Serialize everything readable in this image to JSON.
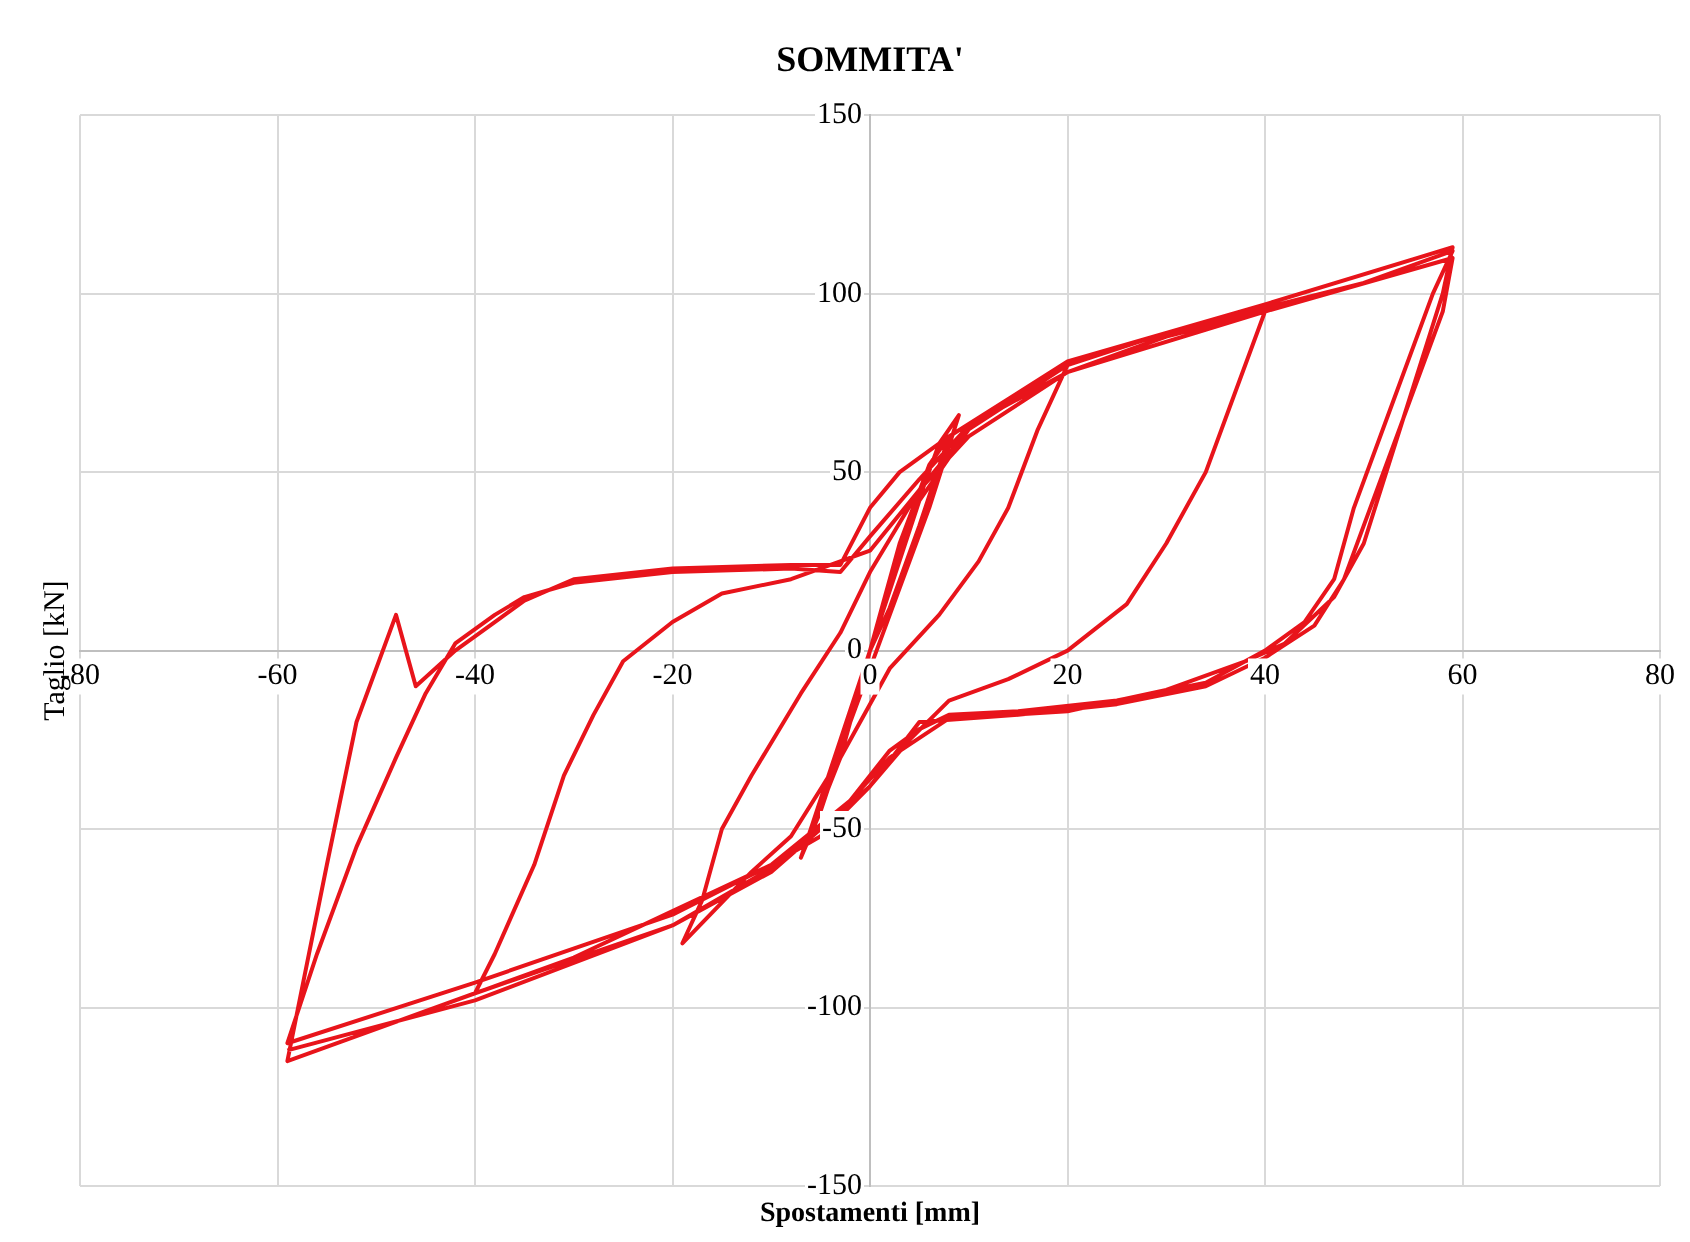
{
  "chart_data": {
    "type": "line",
    "title": "SOMMITA'",
    "xlabel": "Spostamenti [mm]",
    "ylabel": "Taglio [kN]",
    "xlim": [
      -80,
      80
    ],
    "xticks": [
      -80,
      -60,
      -40,
      -20,
      0,
      20,
      40,
      60,
      80
    ],
    "ylim": [
      -150,
      150
    ],
    "yticks": [
      -150,
      -100,
      -50,
      0,
      50,
      100,
      150
    ],
    "grid": true,
    "legend": false,
    "marker": "none",
    "line_style": "solid",
    "series": [
      {
        "color": "#e8141b",
        "x": [
          0,
          3,
          6,
          8,
          5,
          2,
          0,
          -3,
          -6,
          -7,
          -4,
          -1,
          0,
          4,
          7,
          9,
          6,
          2,
          -2,
          -5,
          -7,
          -3,
          0,
          5,
          10,
          15,
          20,
          17,
          14,
          11,
          7,
          2,
          -3,
          -8,
          -12,
          -19,
          -17,
          -15,
          -12,
          -7,
          -3,
          0,
          5,
          10,
          20,
          30,
          40,
          38,
          34,
          30,
          26,
          20,
          14,
          8,
          4,
          0,
          -5,
          -10,
          -20,
          -30,
          -40,
          -38,
          -34,
          -31,
          -28,
          -25,
          -20,
          -15,
          -8,
          0,
          5,
          10,
          20,
          30,
          40,
          50,
          59,
          57,
          53,
          49,
          47,
          44,
          40,
          34,
          25,
          15,
          8,
          5,
          2,
          -2,
          -10,
          -20,
          -40,
          -59,
          -56,
          -52,
          -48,
          -45,
          -42,
          -38,
          -35,
          -30,
          -20,
          -8,
          -3,
          0,
          5,
          10,
          20,
          40,
          59,
          58,
          54,
          50,
          48,
          45,
          40,
          34,
          25,
          15,
          5,
          0,
          -5,
          -10,
          -20,
          -40,
          -59,
          -55,
          -52,
          -48,
          -46,
          -42,
          -38,
          -35,
          -30,
          -20,
          -8,
          -3,
          0,
          3,
          8,
          20,
          40,
          59,
          58,
          54,
          50,
          47,
          42,
          38,
          30,
          20,
          8,
          2,
          -3,
          -10,
          -20,
          -40,
          -59
        ],
        "values": [
          0,
          30,
          52,
          60,
          35,
          12,
          0,
          -25,
          -50,
          -58,
          -35,
          -10,
          0,
          35,
          58,
          66,
          40,
          10,
          -20,
          -45,
          -58,
          -30,
          0,
          42,
          62,
          72,
          80,
          62,
          40,
          25,
          10,
          -5,
          -30,
          -52,
          -62,
          -82,
          -70,
          -50,
          -35,
          -12,
          5,
          22,
          45,
          60,
          78,
          88,
          95,
          80,
          50,
          30,
          13,
          0,
          -8,
          -14,
          -25,
          -38,
          -52,
          -60,
          -73,
          -86,
          -96,
          -85,
          -60,
          -35,
          -18,
          -3,
          8,
          16,
          20,
          28,
          45,
          62,
          80,
          89,
          96,
          103,
          112,
          100,
          70,
          40,
          20,
          8,
          0,
          -9,
          -14,
          -17,
          -18,
          -22,
          -28,
          -42,
          -60,
          -74,
          -93,
          -110,
          -85,
          -55,
          -30,
          -12,
          2,
          10,
          15,
          19,
          22,
          23,
          22,
          32,
          48,
          63,
          78,
          95,
          110,
          95,
          65,
          35,
          20,
          7,
          -2,
          -10,
          -15,
          -18,
          -20,
          -38,
          -50,
          -62,
          -77,
          -96,
          -115,
          -60,
          -20,
          10,
          -10,
          0,
          8,
          14,
          20,
          23,
          24,
          24,
          40,
          50,
          60,
          81,
          97,
          113,
          100,
          65,
          30,
          15,
          2,
          -3,
          -11,
          -17,
          -19,
          -30,
          -45,
          -61,
          -77,
          -98,
          -112
        ]
      }
    ]
  }
}
